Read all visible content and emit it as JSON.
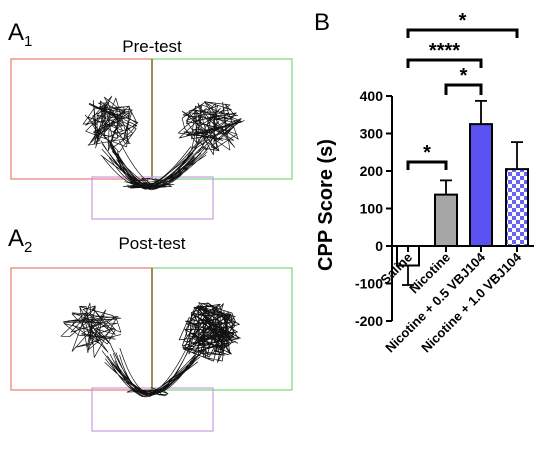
{
  "panels": {
    "a1_letter": "A",
    "a1_sub": "1",
    "a1_title": "Pre-test",
    "a2_letter": "A",
    "a2_sub": "2",
    "a2_title": "Post-test",
    "b_letter": "B"
  },
  "colors": {
    "left_chamber": "#e87a74",
    "right_chamber": "#79d97b",
    "center_chamber": "#c79be0",
    "divider": "#6b5a12",
    "saline_bar": "#ffffff",
    "nicotine_bar": "#a6a6a6",
    "nic05_bar": "#5a52f0",
    "nic10_pattern_a": "#6a63f2",
    "nic10_pattern_b": "#ffffff"
  },
  "chart_data": {
    "type": "bar",
    "categories": [
      "Saline",
      "Nicotine",
      "Nicotine + 0.5 VBJ104",
      "Nicotine + 1.0 VBJ104"
    ],
    "values": [
      -52,
      137,
      325,
      205
    ],
    "errors": [
      52,
      38,
      62,
      72
    ],
    "ylabel": "CPP Score (s)",
    "ylim": [
      -200,
      400
    ],
    "yticks": [
      -200,
      -100,
      0,
      100,
      200,
      300,
      400
    ],
    "grid": false,
    "significance": [
      {
        "from": 0,
        "to": 1,
        "label": "*"
      },
      {
        "from": 1,
        "to": 2,
        "label": "*"
      },
      {
        "from": 0,
        "to": 2,
        "label": "****"
      },
      {
        "from": 0,
        "to": 3,
        "label": "*"
      }
    ]
  }
}
